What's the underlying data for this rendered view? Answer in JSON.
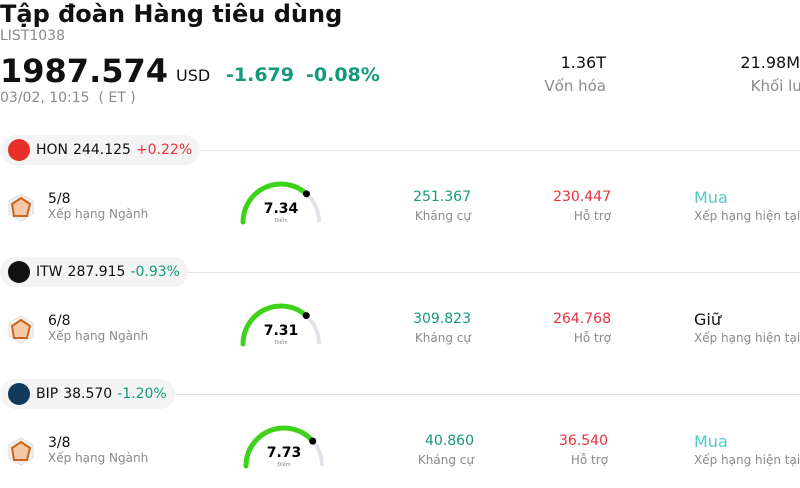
{
  "header": {
    "title": "Tập đoàn Hàng tiêu dùng",
    "code": "LIST1038",
    "price": "1987.574",
    "currency": "USD",
    "change": "-1.679",
    "change_pct": "-0.08%",
    "change_color": "#13997c",
    "time": "03/02, 10:15  ( ET )"
  },
  "stats": [
    {
      "value": "1.36T",
      "label": "Vốn hóa"
    },
    {
      "value": "21.98M",
      "label": "Khối lượng"
    }
  ],
  "stocks": [
    {
      "ticker": "HON",
      "logo_color": "#e8302a",
      "price": "244.125",
      "change": "+0.22%",
      "change_color": "#e8303f",
      "rank": "5/8",
      "rank_label": "Xếp hạng Ngành",
      "score": 7.34,
      "score_label": "Điểm",
      "resistance": "251.367",
      "resistance_label": "Kháng cự",
      "support": "230.447",
      "support_label": "Hỗ trợ",
      "rating": "Mua",
      "rating_color": "#4ecdc4",
      "rating_label": "Xếp hạng hiện tại"
    },
    {
      "ticker": "ITW",
      "logo_color": "#111111",
      "price": "287.915",
      "change": "-0.93%",
      "change_color": "#13997c",
      "rank": "6/8",
      "rank_label": "Xếp hạng Ngành",
      "score": 7.31,
      "score_label": "Điểm",
      "resistance": "309.823",
      "resistance_label": "Kháng cự",
      "support": "264.768",
      "support_label": "Hỗ trợ",
      "rating": "Giữ",
      "rating_color": "#111111",
      "rating_label": "Xếp hạng hiện tại"
    },
    {
      "ticker": "BIP",
      "logo_color": "#123a5c",
      "price": "38.570",
      "change": "-1.20%",
      "change_color": "#13997c",
      "rank": "3/8",
      "rank_label": "Xếp hạng Ngành",
      "score": 7.73,
      "score_label": "Điểm",
      "resistance": "40.860",
      "resistance_label": "Kháng cự",
      "support": "36.540",
      "support_label": "Hỗ trợ",
      "rating": "Mua",
      "rating_color": "#4ecdc4",
      "rating_label": "Xếp hạng hiện tại"
    }
  ]
}
